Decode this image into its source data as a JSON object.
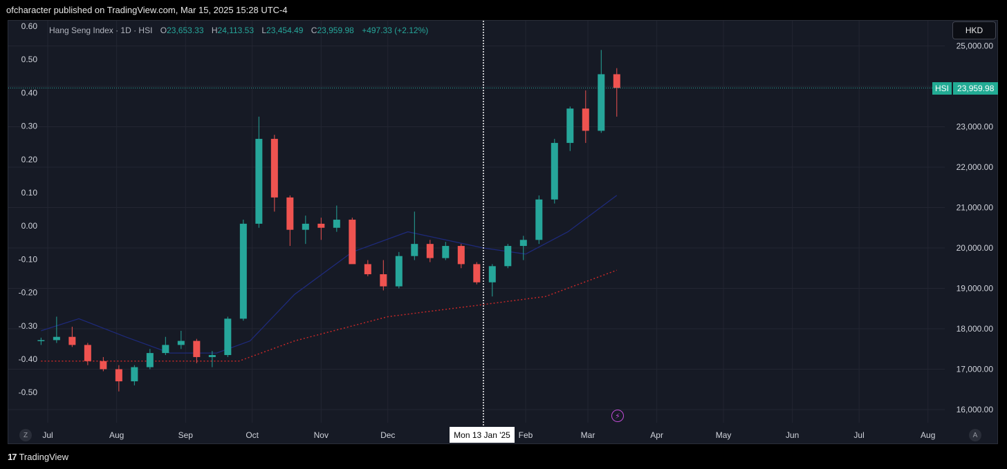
{
  "publish_line": "ofcharacter published on TradingView.com, Mar 15, 2025 15:28 UTC-4",
  "legend": {
    "title": "Hang Seng Index · 1D · HSI",
    "o_label": "O",
    "o_value": "23,653.33",
    "h_label": "H",
    "h_value": "24,113.53",
    "l_label": "L",
    "l_value": "23,454.49",
    "c_label": "C",
    "c_value": "23,959.98",
    "change": "+497.33 (+2.12%)"
  },
  "currency_button": "HKD",
  "last_price": {
    "symbol": "HSI",
    "price": "23,959.98"
  },
  "crosshair_date": "Mon 13 Jan '25",
  "scale_left_button": "Z",
  "scale_right_button": "A",
  "footer": {
    "logo": "17",
    "brand": "TradingView"
  },
  "colors": {
    "up": "#26a69a",
    "down": "#ef5350",
    "ma_fast": "#1e2a7a",
    "ma_slow": "#c62828",
    "background": "#161a25"
  },
  "chart_data": {
    "type": "candlestick",
    "title": "Hang Seng Index · 1D · HSI",
    "right_axis": {
      "label": "HKD",
      "ticks": [
        "16,000.00",
        "17,000.00",
        "18,000.00",
        "19,000.00",
        "20,000.00",
        "21,000.00",
        "22,000.00",
        "23,000.00",
        "24,000.00",
        "25,000.00"
      ],
      "ylim": [
        15750,
        25550
      ]
    },
    "left_axis": {
      "ticks": [
        "0.60",
        "0.50",
        "0.40",
        "0.30",
        "0.20",
        "0.10",
        "0.00",
        "-0.10",
        "-0.20",
        "-0.30",
        "-0.40",
        "-0.50"
      ]
    },
    "x_ticks": [
      "Jul",
      "Aug",
      "Sep",
      "Oct",
      "Nov",
      "Dec",
      "Feb",
      "Mar",
      "Apr",
      "May",
      "Jun",
      "Jul",
      "Aug"
    ],
    "x_tick_dates": [
      "2024-07-01",
      "2024-08-01",
      "2024-09-01",
      "2024-10-01",
      "2024-11-01",
      "2024-12-01",
      "2025-02-01",
      "2025-03-01",
      "2025-04-01",
      "2025-05-01",
      "2025-06-01",
      "2025-07-01",
      "2025-08-01"
    ],
    "crosshair_date": "2025-01-13",
    "last_close": 23959.98,
    "candles_weekly_approx": [
      {
        "d": "2024-06-28",
        "o": 17700,
        "h": 17780,
        "l": 17600,
        "c": 17720
      },
      {
        "d": "2024-07-05",
        "o": 17720,
        "h": 18300,
        "l": 17650,
        "c": 17800
      },
      {
        "d": "2024-07-12",
        "o": 17800,
        "h": 18050,
        "l": 17550,
        "c": 17600
      },
      {
        "d": "2024-07-19",
        "o": 17600,
        "h": 17650,
        "l": 17100,
        "c": 17200
      },
      {
        "d": "2024-07-26",
        "o": 17200,
        "h": 17300,
        "l": 16950,
        "c": 17000
      },
      {
        "d": "2024-08-02",
        "o": 17000,
        "h": 17100,
        "l": 16450,
        "c": 16700
      },
      {
        "d": "2024-08-09",
        "o": 16700,
        "h": 17100,
        "l": 16600,
        "c": 17050
      },
      {
        "d": "2024-08-16",
        "o": 17050,
        "h": 17500,
        "l": 17000,
        "c": 17400
      },
      {
        "d": "2024-08-23",
        "o": 17400,
        "h": 17800,
        "l": 17350,
        "c": 17600
      },
      {
        "d": "2024-08-30",
        "o": 17600,
        "h": 17950,
        "l": 17500,
        "c": 17700
      },
      {
        "d": "2024-09-06",
        "o": 17700,
        "h": 17750,
        "l": 17150,
        "c": 17300
      },
      {
        "d": "2024-09-13",
        "o": 17300,
        "h": 17450,
        "l": 17050,
        "c": 17350
      },
      {
        "d": "2024-09-20",
        "o": 17350,
        "h": 18300,
        "l": 17300,
        "c": 18250
      },
      {
        "d": "2024-09-27",
        "o": 18250,
        "h": 20700,
        "l": 18200,
        "c": 20600
      },
      {
        "d": "2024-10-04",
        "o": 20600,
        "h": 23250,
        "l": 20500,
        "c": 22700
      },
      {
        "d": "2024-10-11",
        "o": 22700,
        "h": 22800,
        "l": 20900,
        "c": 21250
      },
      {
        "d": "2024-10-18",
        "o": 21250,
        "h": 21300,
        "l": 20050,
        "c": 20450
      },
      {
        "d": "2024-10-25",
        "o": 20450,
        "h": 20800,
        "l": 20100,
        "c": 20600
      },
      {
        "d": "2024-11-01",
        "o": 20600,
        "h": 20750,
        "l": 20200,
        "c": 20500
      },
      {
        "d": "2024-11-08",
        "o": 20500,
        "h": 21050,
        "l": 20400,
        "c": 20700
      },
      {
        "d": "2024-11-15",
        "o": 20700,
        "h": 20750,
        "l": 19700,
        "c": 19600
      },
      {
        "d": "2024-11-22",
        "o": 19600,
        "h": 19700,
        "l": 19300,
        "c": 19350
      },
      {
        "d": "2024-11-29",
        "o": 19350,
        "h": 19700,
        "l": 18950,
        "c": 19050
      },
      {
        "d": "2024-12-06",
        "o": 19050,
        "h": 19900,
        "l": 19000,
        "c": 19800
      },
      {
        "d": "2024-12-13",
        "o": 19800,
        "h": 20900,
        "l": 19700,
        "c": 20100
      },
      {
        "d": "2024-12-20",
        "o": 20100,
        "h": 20200,
        "l": 19650,
        "c": 19750
      },
      {
        "d": "2024-12-27",
        "o": 19750,
        "h": 20150,
        "l": 19700,
        "c": 20050
      },
      {
        "d": "2025-01-03",
        "o": 20050,
        "h": 20100,
        "l": 19500,
        "c": 19600
      },
      {
        "d": "2025-01-10",
        "o": 19600,
        "h": 19650,
        "l": 19100,
        "c": 19150
      },
      {
        "d": "2025-01-17",
        "o": 19150,
        "h": 19600,
        "l": 18800,
        "c": 19550
      },
      {
        "d": "2025-01-24",
        "o": 19550,
        "h": 20100,
        "l": 19500,
        "c": 20050
      },
      {
        "d": "2025-01-31",
        "o": 20050,
        "h": 20300,
        "l": 19700,
        "c": 20200
      },
      {
        "d": "2025-02-07",
        "o": 20200,
        "h": 21300,
        "l": 20100,
        "c": 21200
      },
      {
        "d": "2025-02-14",
        "o": 21200,
        "h": 22700,
        "l": 21100,
        "c": 22600
      },
      {
        "d": "2025-02-21",
        "o": 22600,
        "h": 23500,
        "l": 22400,
        "c": 23450
      },
      {
        "d": "2025-02-28",
        "o": 23450,
        "h": 23900,
        "l": 22600,
        "c": 22900
      },
      {
        "d": "2025-03-07",
        "o": 22900,
        "h": 24900,
        "l": 22850,
        "c": 24300
      },
      {
        "d": "2025-03-14",
        "o": 24300,
        "h": 24450,
        "l": 23250,
        "c": 23960
      }
    ],
    "series": [
      {
        "line": "ma_fast",
        "style": "solid",
        "points": [
          {
            "d": "2024-06-28",
            "v": 17950
          },
          {
            "d": "2024-07-15",
            "v": 18250
          },
          {
            "d": "2024-08-05",
            "v": 17800
          },
          {
            "d": "2024-08-25",
            "v": 17400
          },
          {
            "d": "2024-09-15",
            "v": 17400
          },
          {
            "d": "2024-09-30",
            "v": 17700
          },
          {
            "d": "2024-10-20",
            "v": 18850
          },
          {
            "d": "2024-11-15",
            "v": 19900
          },
          {
            "d": "2024-12-10",
            "v": 20400
          },
          {
            "d": "2025-01-13",
            "v": 20000
          },
          {
            "d": "2025-02-01",
            "v": 19850
          },
          {
            "d": "2025-02-20",
            "v": 20400
          },
          {
            "d": "2025-03-14",
            "v": 21300
          }
        ]
      },
      {
        "line": "ma_slow",
        "style": "dotted",
        "points": [
          {
            "d": "2024-06-28",
            "v": 17200
          },
          {
            "d": "2024-08-15",
            "v": 17200
          },
          {
            "d": "2024-09-25",
            "v": 17200
          },
          {
            "d": "2024-10-20",
            "v": 17700
          },
          {
            "d": "2024-12-01",
            "v": 18300
          },
          {
            "d": "2025-01-13",
            "v": 18600
          },
          {
            "d": "2025-02-10",
            "v": 18800
          },
          {
            "d": "2025-03-14",
            "v": 19450
          }
        ]
      }
    ],
    "grid": true
  }
}
